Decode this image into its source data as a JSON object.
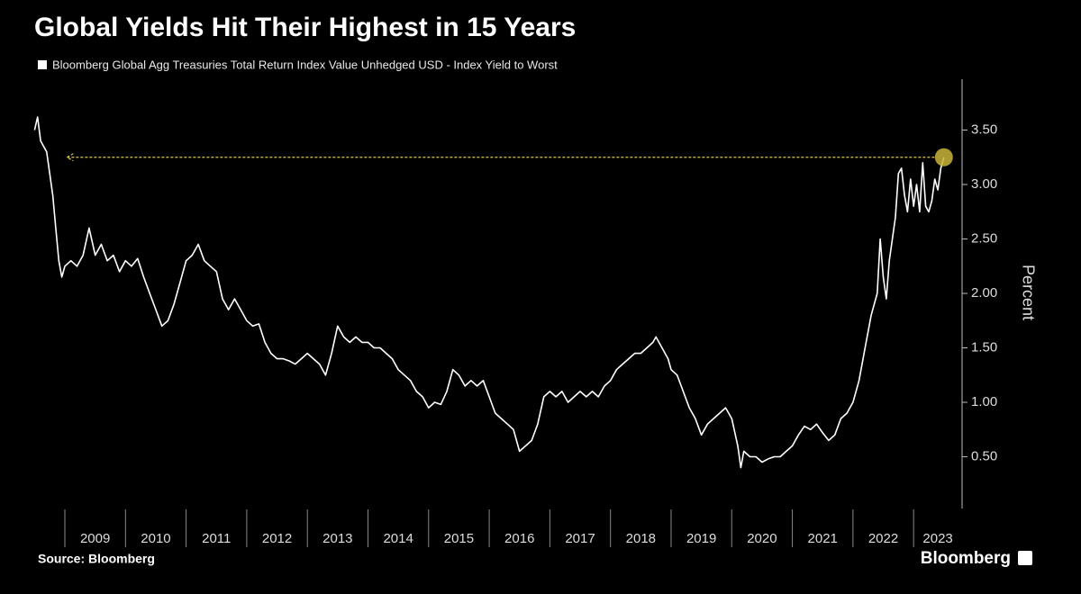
{
  "chart_data": {
    "type": "line",
    "title": "Global Yields Hit Their Highest in 15 Years",
    "y_label": "Percent",
    "source": "Source: Bloomberg",
    "brand": "Bloomberg",
    "legend": "top-left",
    "xlim": [
      2008.45,
      2023.8
    ],
    "xticks": [
      2009,
      2010,
      2011,
      2012,
      2013,
      2014,
      2015,
      2016,
      2017,
      2018,
      2019,
      2020,
      2021,
      2022,
      2023
    ],
    "ylim": [
      0,
      4
    ],
    "yticks": [
      {
        "value": 0.5,
        "label": "0.50"
      },
      {
        "value": 1,
        "label": "1.00"
      },
      {
        "value": 1.5,
        "label": "1.50"
      },
      {
        "value": 2,
        "label": "2.00"
      },
      {
        "value": 2.5,
        "label": "2.50"
      },
      {
        "value": 3,
        "label": "3.00"
      },
      {
        "value": 3.5,
        "label": "3.50"
      }
    ],
    "x": [
      2008.5,
      2008.55,
      2008.6,
      2008.7,
      2008.75,
      2008.8,
      2008.85,
      2008.9,
      2008.95,
      2009.0,
      2009.1,
      2009.2,
      2009.3,
      2009.4,
      2009.5,
      2009.6,
      2009.7,
      2009.8,
      2009.9,
      2010.0,
      2010.1,
      2010.2,
      2010.3,
      2010.4,
      2010.5,
      2010.6,
      2010.7,
      2010.8,
      2010.9,
      2011.0,
      2011.1,
      2011.2,
      2011.3,
      2011.4,
      2011.5,
      2011.6,
      2011.7,
      2011.8,
      2011.9,
      2012.0,
      2012.1,
      2012.2,
      2012.3,
      2012.4,
      2012.5,
      2012.6,
      2012.7,
      2012.8,
      2012.9,
      2013.0,
      2013.1,
      2013.2,
      2013.3,
      2013.4,
      2013.5,
      2013.6,
      2013.7,
      2013.8,
      2013.9,
      2014.0,
      2014.1,
      2014.2,
      2014.3,
      2014.4,
      2014.5,
      2014.6,
      2014.7,
      2014.8,
      2014.9,
      2015.0,
      2015.1,
      2015.2,
      2015.3,
      2015.4,
      2015.5,
      2015.6,
      2015.7,
      2015.8,
      2015.9,
      2016.0,
      2016.1,
      2016.2,
      2016.3,
      2016.4,
      2016.5,
      2016.6,
      2016.7,
      2016.8,
      2016.9,
      2017.0,
      2017.1,
      2017.2,
      2017.3,
      2017.4,
      2017.5,
      2017.6,
      2017.7,
      2017.8,
      2017.9,
      2018.0,
      2018.1,
      2018.2,
      2018.3,
      2018.4,
      2018.5,
      2018.6,
      2018.7,
      2018.75,
      2018.85,
      2018.95,
      2019.0,
      2019.1,
      2019.2,
      2019.3,
      2019.4,
      2019.5,
      2019.6,
      2019.7,
      2019.8,
      2019.9,
      2020.0,
      2020.1,
      2020.15,
      2020.2,
      2020.3,
      2020.4,
      2020.5,
      2020.6,
      2020.7,
      2020.8,
      2020.9,
      2021.0,
      2021.1,
      2021.2,
      2021.3,
      2021.4,
      2021.5,
      2021.6,
      2021.7,
      2021.8,
      2021.9,
      2022.0,
      2022.1,
      2022.2,
      2022.3,
      2022.4,
      2022.45,
      2022.5,
      2022.55,
      2022.6,
      2022.7,
      2022.75,
      2022.8,
      2022.85,
      2022.9,
      2022.95,
      2023.0,
      2023.05,
      2023.1,
      2023.15,
      2023.2,
      2023.25,
      2023.3,
      2023.35,
      2023.4,
      2023.45,
      2023.5
    ],
    "series": [
      {
        "name": "Bloomberg Global Agg Treasuries Total Return Index Value Unhedged USD - Index Yield to Worst",
        "color": "#ffffff",
        "values": [
          3.5,
          3.62,
          3.4,
          3.3,
          3.1,
          2.9,
          2.6,
          2.3,
          2.15,
          2.25,
          2.3,
          2.25,
          2.35,
          2.6,
          2.35,
          2.45,
          2.3,
          2.35,
          2.2,
          2.3,
          2.25,
          2.32,
          2.15,
          2.0,
          1.85,
          1.7,
          1.75,
          1.9,
          2.1,
          2.3,
          2.35,
          2.45,
          2.3,
          2.25,
          2.2,
          1.95,
          1.85,
          1.95,
          1.85,
          1.75,
          1.7,
          1.72,
          1.55,
          1.45,
          1.4,
          1.4,
          1.38,
          1.35,
          1.4,
          1.45,
          1.4,
          1.35,
          1.25,
          1.45,
          1.7,
          1.6,
          1.55,
          1.6,
          1.55,
          1.55,
          1.5,
          1.5,
          1.45,
          1.4,
          1.3,
          1.25,
          1.2,
          1.1,
          1.05,
          0.95,
          1.0,
          0.98,
          1.1,
          1.3,
          1.25,
          1.15,
          1.2,
          1.15,
          1.2,
          1.05,
          0.9,
          0.85,
          0.8,
          0.75,
          0.55,
          0.6,
          0.65,
          0.8,
          1.05,
          1.1,
          1.05,
          1.1,
          1.0,
          1.05,
          1.1,
          1.05,
          1.1,
          1.05,
          1.15,
          1.2,
          1.3,
          1.35,
          1.4,
          1.45,
          1.45,
          1.5,
          1.55,
          1.6,
          1.5,
          1.4,
          1.3,
          1.25,
          1.1,
          0.95,
          0.85,
          0.7,
          0.8,
          0.85,
          0.9,
          0.95,
          0.85,
          0.6,
          0.4,
          0.55,
          0.5,
          0.5,
          0.45,
          0.48,
          0.5,
          0.5,
          0.55,
          0.6,
          0.7,
          0.78,
          0.75,
          0.8,
          0.72,
          0.65,
          0.7,
          0.85,
          0.9,
          1.0,
          1.2,
          1.5,
          1.8,
          2.0,
          2.5,
          2.15,
          1.95,
          2.3,
          2.7,
          3.1,
          3.15,
          2.9,
          2.75,
          3.05,
          2.8,
          3.0,
          2.75,
          3.2,
          2.8,
          2.75,
          2.85,
          3.05,
          2.95,
          3.15,
          3.25
        ]
      }
    ]
  }
}
